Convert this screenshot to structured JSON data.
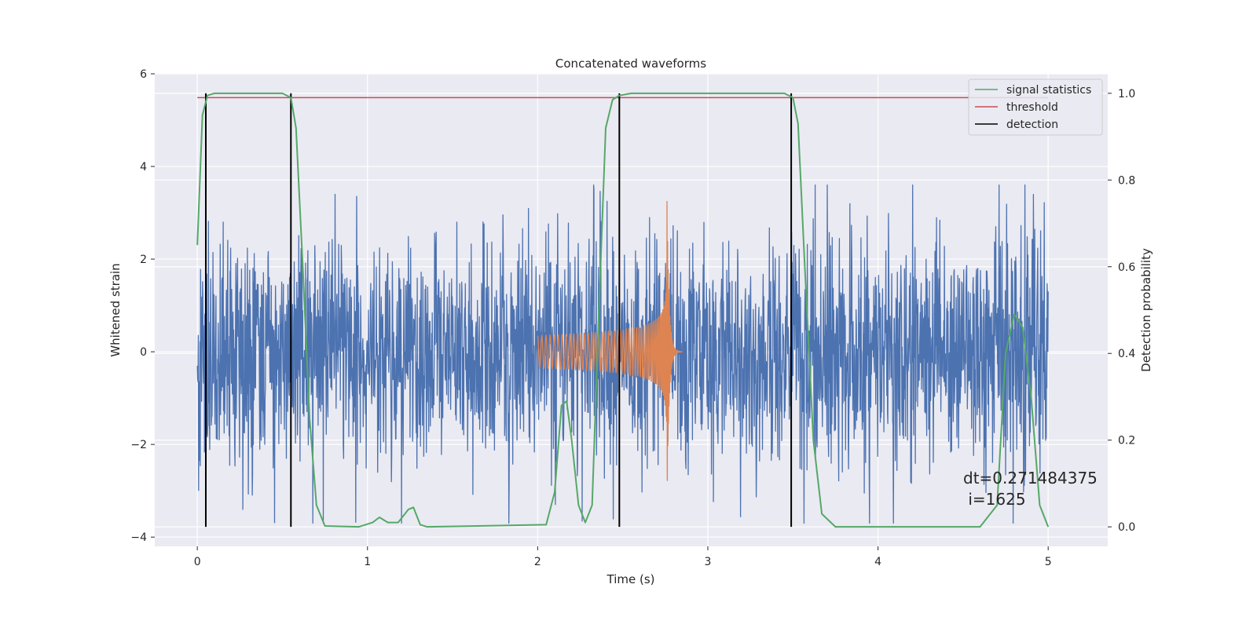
{
  "chart_data": {
    "type": "line",
    "title": "Concatenated waveforms",
    "xlabel": "Time (s)",
    "ylabel": "Whitened strain",
    "y2label": "Detection probability",
    "xlim": [
      -0.25,
      5.35
    ],
    "ylim": [
      -4.2,
      6.0
    ],
    "y2lim": [
      -0.045,
      1.045
    ],
    "xticks": [
      0,
      1,
      2,
      3,
      4,
      5
    ],
    "yticks": [
      -4,
      -2,
      0,
      2,
      4,
      6
    ],
    "y2ticks": [
      0.0,
      0.2,
      0.4,
      0.6,
      0.8,
      1.0
    ],
    "grid": true,
    "legend_position": "top-right",
    "colors": {
      "strain": "#4c72b0",
      "injection": "#dd8452",
      "signal_statistics": "#55a868",
      "threshold": "#c44e52",
      "detection": "#000000",
      "background": "#eaeaf2"
    },
    "strain_noise": {
      "x_range": [
        0.0,
        5.0
      ],
      "typical_amplitude": 1.5,
      "max": 3.6,
      "min": -3.7
    },
    "injection": {
      "x_start": 2.0,
      "x_merger": 2.76,
      "x_end": 2.85,
      "amplitude_start": 0.35,
      "amplitude_peak": 3.3,
      "min": -3.2
    },
    "series": [
      {
        "name": "signal statistics",
        "axis": "right",
        "x": [
          0.0,
          0.03,
          0.06,
          0.1,
          0.5,
          0.55,
          0.58,
          0.62,
          0.66,
          0.7,
          0.75,
          0.95,
          1.03,
          1.07,
          1.12,
          1.18,
          1.24,
          1.27,
          1.31,
          1.35,
          2.05,
          2.1,
          2.14,
          2.17,
          2.2,
          2.24,
          2.28,
          2.32,
          2.36,
          2.4,
          2.44,
          2.48,
          2.55,
          3.45,
          3.5,
          3.53,
          3.57,
          3.62,
          3.67,
          3.75,
          4.6,
          4.7,
          4.75,
          4.8,
          4.85,
          4.9,
          4.95,
          5.0
        ],
        "y": [
          0.65,
          0.95,
          0.995,
          1.0,
          1.0,
          0.99,
          0.92,
          0.6,
          0.25,
          0.05,
          0.002,
          0.0,
          0.01,
          0.022,
          0.01,
          0.01,
          0.04,
          0.045,
          0.005,
          0.0,
          0.005,
          0.08,
          0.28,
          0.29,
          0.2,
          0.05,
          0.01,
          0.05,
          0.5,
          0.92,
          0.985,
          0.995,
          1.0,
          1.0,
          0.99,
          0.93,
          0.6,
          0.2,
          0.03,
          0.0,
          0.0,
          0.05,
          0.4,
          0.49,
          0.46,
          0.3,
          0.05,
          0.0
        ]
      },
      {
        "name": "threshold",
        "axis": "right",
        "x": [
          0.0,
          5.0
        ],
        "y": [
          0.99,
          0.99
        ]
      },
      {
        "name": "detection",
        "axis": "right",
        "x": [
          0.05,
          0.55,
          2.48,
          3.49
        ],
        "y_range": [
          0.0,
          1.0
        ]
      }
    ],
    "annotation": {
      "line1": "dt=0.271484375",
      "line2": " i=1625"
    }
  }
}
